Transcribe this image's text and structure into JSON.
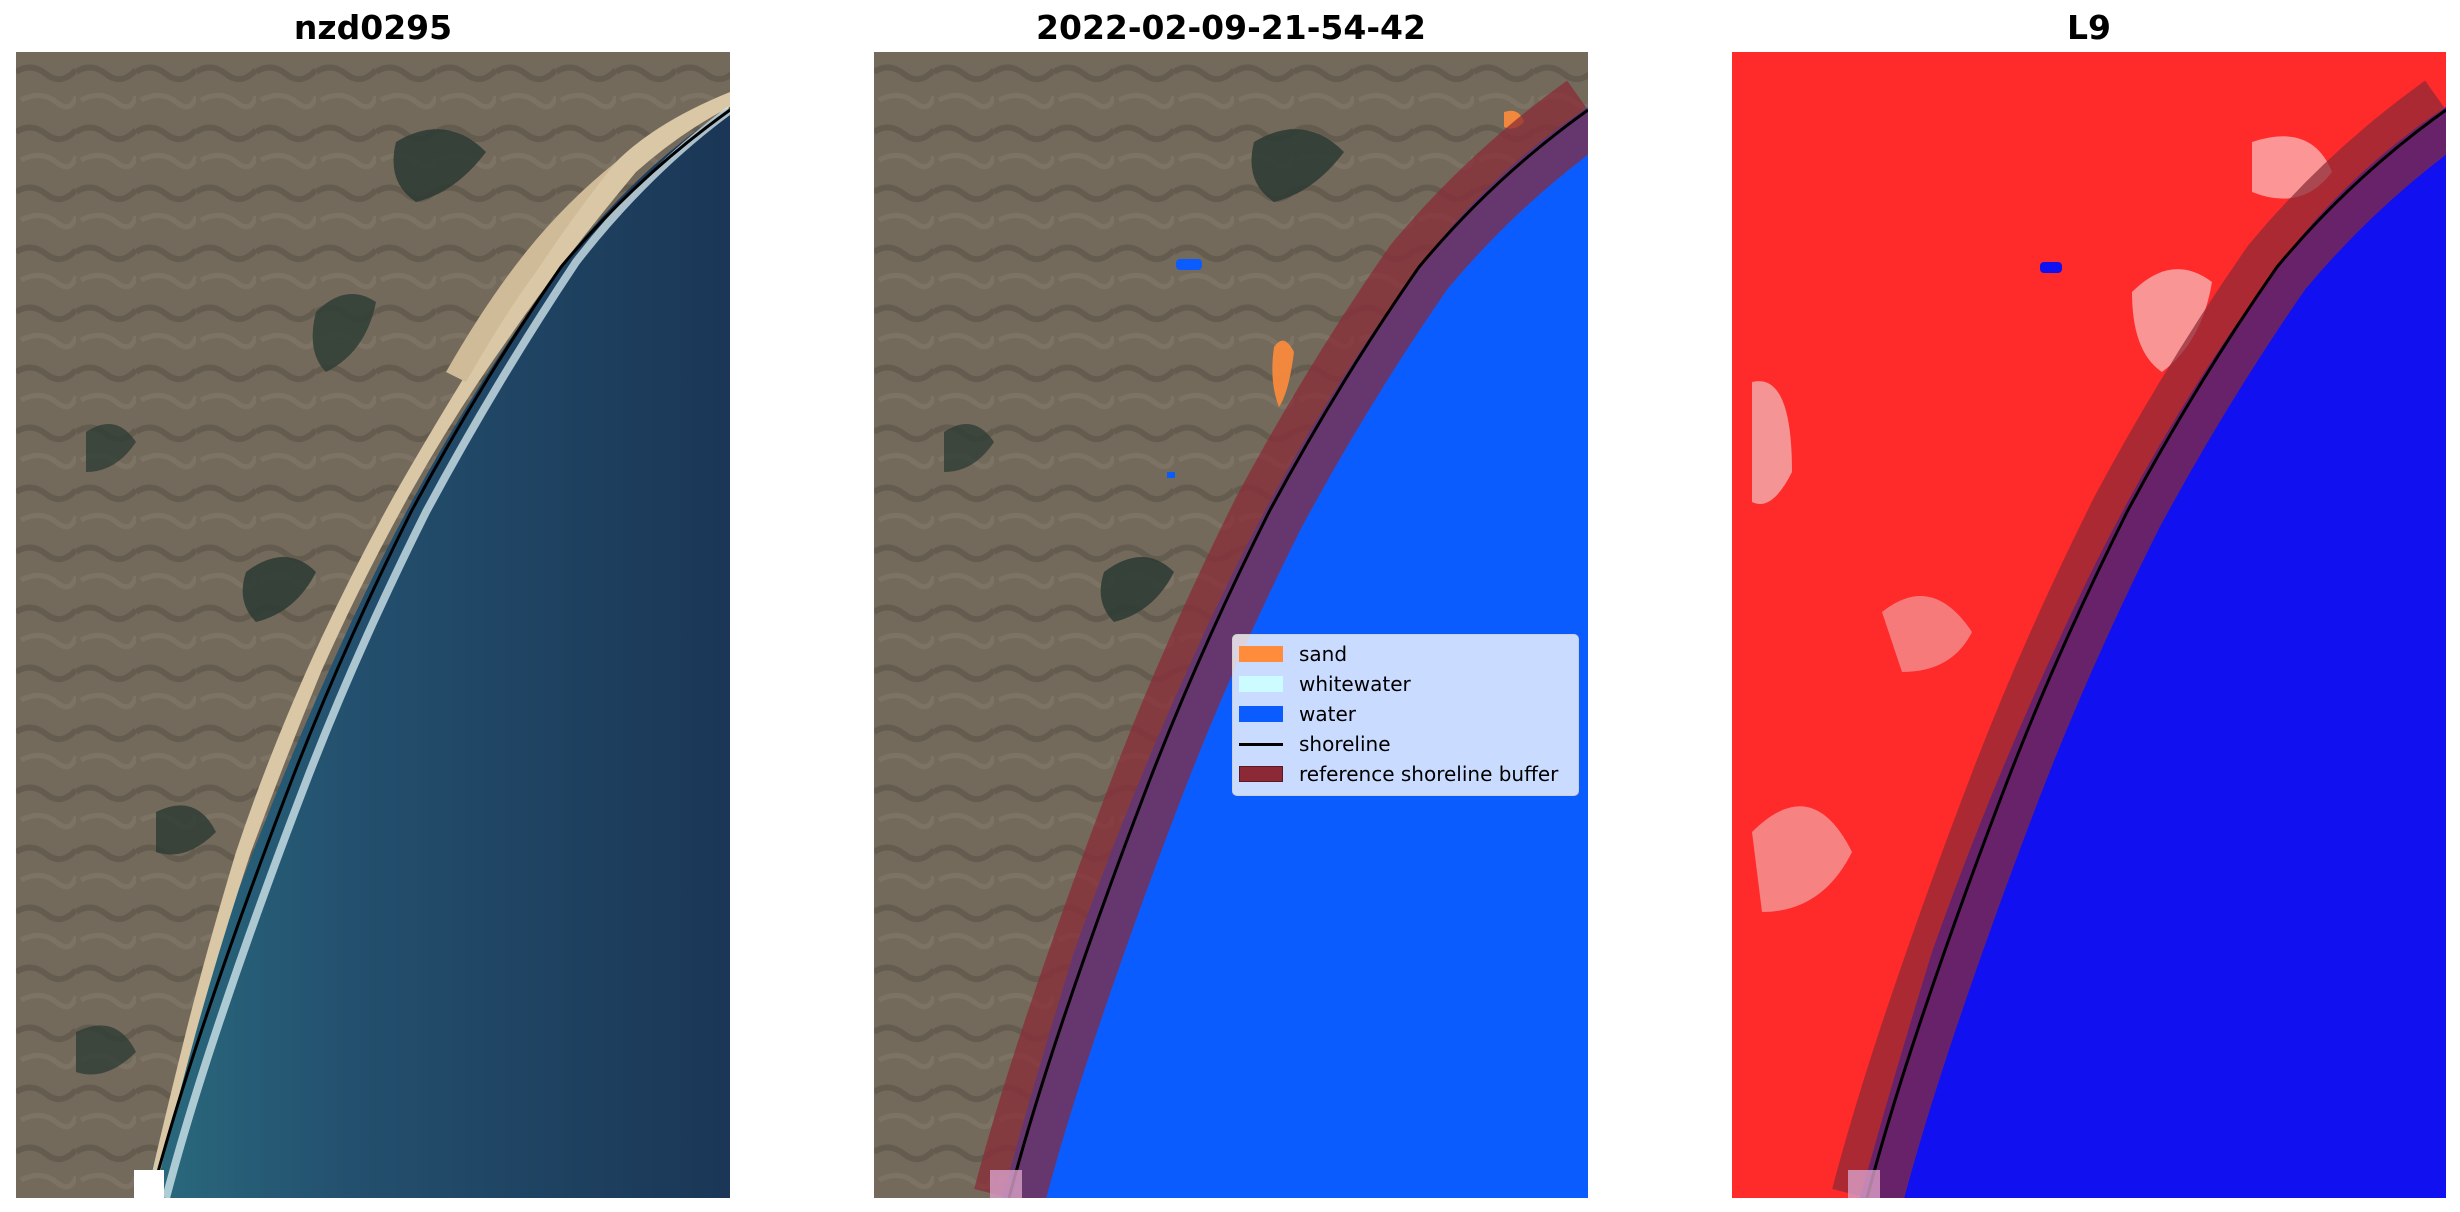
{
  "panels": [
    {
      "title": "nzd0295"
    },
    {
      "title": "2022-02-09-21-54-42"
    },
    {
      "title": "L9"
    }
  ],
  "legend": {
    "items": [
      {
        "label": "sand",
        "color": "#ff8c3a",
        "kind": "patch"
      },
      {
        "label": "whitewater",
        "color": "#ccfcff",
        "kind": "patch"
      },
      {
        "label": "water",
        "color": "#0a5cff",
        "kind": "patch"
      },
      {
        "label": "shoreline",
        "color": "#000000",
        "kind": "line"
      },
      {
        "label": "reference shoreline buffer",
        "color": "#8b2a36",
        "kind": "patch"
      }
    ]
  },
  "colors": {
    "land": "#6e6558",
    "sand": "#d9c7a6",
    "ocean": "#1d3f60",
    "water_class": "#0a5cff",
    "buffer": "#8b2a36",
    "index_land": "#ff2a2a",
    "index_water": "#1010f0"
  }
}
